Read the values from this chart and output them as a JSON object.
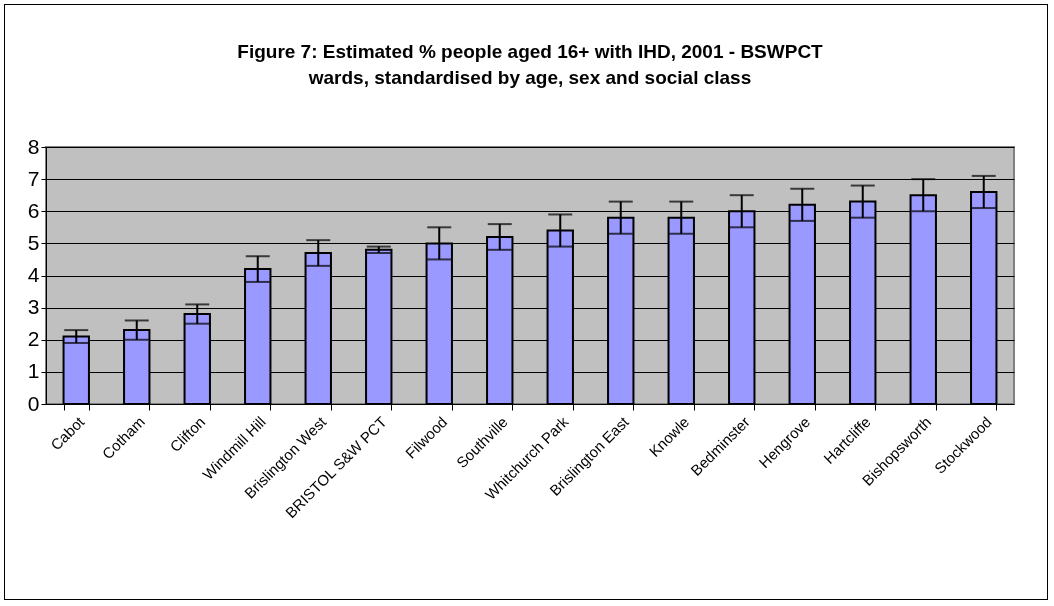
{
  "chart_data": {
    "type": "bar",
    "title": "Figure 7: Estimated % people aged 16+ with IHD, 2001 - BSWPCT wards, standardised by age, sex and social class",
    "categories": [
      "Cabot",
      "Cotham",
      "Clifton",
      "Windmill Hill",
      "Brislington West",
      "BRISTOL S&W PCT",
      "Filwood",
      "Southville",
      "Whitchurch Park",
      "Brislington East",
      "Knowle",
      "Bedminster",
      "Hengrove",
      "Hartcliffe",
      "Bishopsworth",
      "Stockwood"
    ],
    "values": [
      2.1,
      2.3,
      2.8,
      4.2,
      4.7,
      4.8,
      5.0,
      5.2,
      5.4,
      5.8,
      5.8,
      6.0,
      6.2,
      6.3,
      6.5,
      6.6
    ],
    "errors": [
      [
        1.9,
        2.3
      ],
      [
        2.0,
        2.6
      ],
      [
        2.5,
        3.1
      ],
      [
        3.8,
        4.6
      ],
      [
        4.3,
        5.1
      ],
      [
        4.7,
        4.9
      ],
      [
        4.5,
        5.5
      ],
      [
        4.8,
        5.6
      ],
      [
        4.9,
        5.9
      ],
      [
        5.3,
        6.3
      ],
      [
        5.3,
        6.3
      ],
      [
        5.5,
        6.5
      ],
      [
        5.7,
        6.7
      ],
      [
        5.8,
        6.8
      ],
      [
        6.0,
        7.0
      ],
      [
        6.1,
        7.1
      ]
    ],
    "color": "#9999ff",
    "ylim": [
      0,
      8
    ],
    "yticks": [
      0,
      1,
      2,
      3,
      4,
      5,
      6,
      7,
      8
    ],
    "grid": "y"
  }
}
